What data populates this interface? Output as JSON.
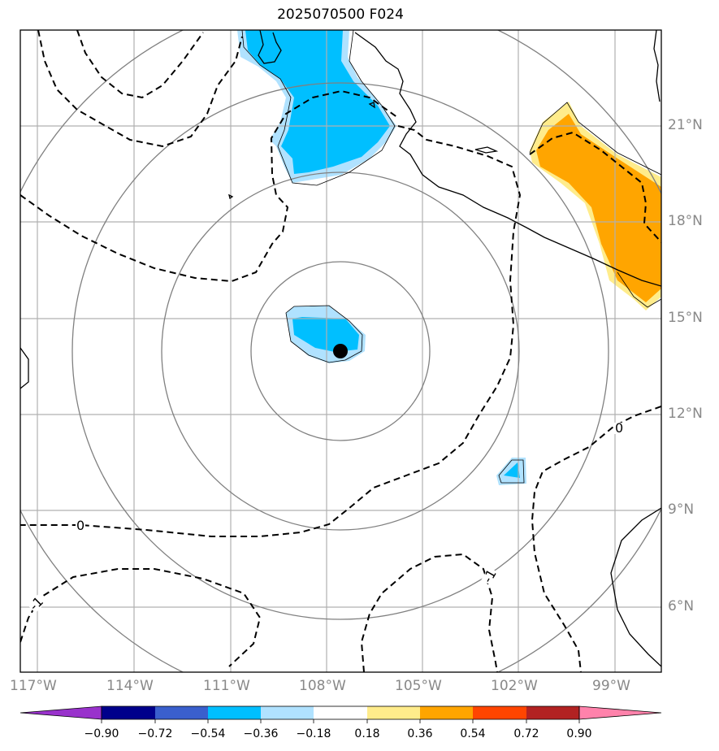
{
  "title": "2025070500 F024",
  "chart_data": {
    "type": "map",
    "extent_lon": [
      -118,
      -98
    ],
    "extent_lat": [
      4,
      24
    ],
    "longitude_tick_labels": [
      "117°W",
      "114°W",
      "111°W",
      "108°W",
      "105°W",
      "102°W",
      "99°W"
    ],
    "longitude_ticks": [
      -117,
      -114,
      -111,
      -108,
      -105,
      -102,
      -99
    ],
    "latitude_tick_labels": [
      "21°N",
      "18°N",
      "15°N",
      "12°N",
      "9°N",
      "6°N"
    ],
    "latitude_ticks": [
      21,
      18,
      15,
      12,
      9,
      6
    ],
    "grid": true,
    "center_marker": {
      "lon": -107.6,
      "lat": 14.0
    },
    "range_rings": 4,
    "contour_labels": [
      "0",
      "0",
      "-1",
      "-1"
    ],
    "colorbar": {
      "tick_labels": [
        "−0.90",
        "−0.72",
        "−0.54",
        "−0.36",
        "−0.18",
        "0.18",
        "0.36",
        "0.54",
        "0.72",
        "0.90"
      ],
      "ticks": [
        -0.9,
        -0.72,
        -0.54,
        -0.36,
        -0.18,
        0.18,
        0.36,
        0.54,
        0.72,
        0.9
      ],
      "colors": [
        "#9932cc",
        "#00008b",
        "#3a5fcd",
        "#00bfff",
        "#b0e2ff",
        "#ffffff",
        "#ffec8b",
        "#ffa500",
        "#ff4500",
        "#b22222",
        "#ff82ab"
      ],
      "extend": "both"
    },
    "shading_colors": {
      "light_blue": "#b0e2ff",
      "blue": "#00bfff",
      "light_yellow": "#ffec8b",
      "orange": "#ffa500"
    }
  }
}
